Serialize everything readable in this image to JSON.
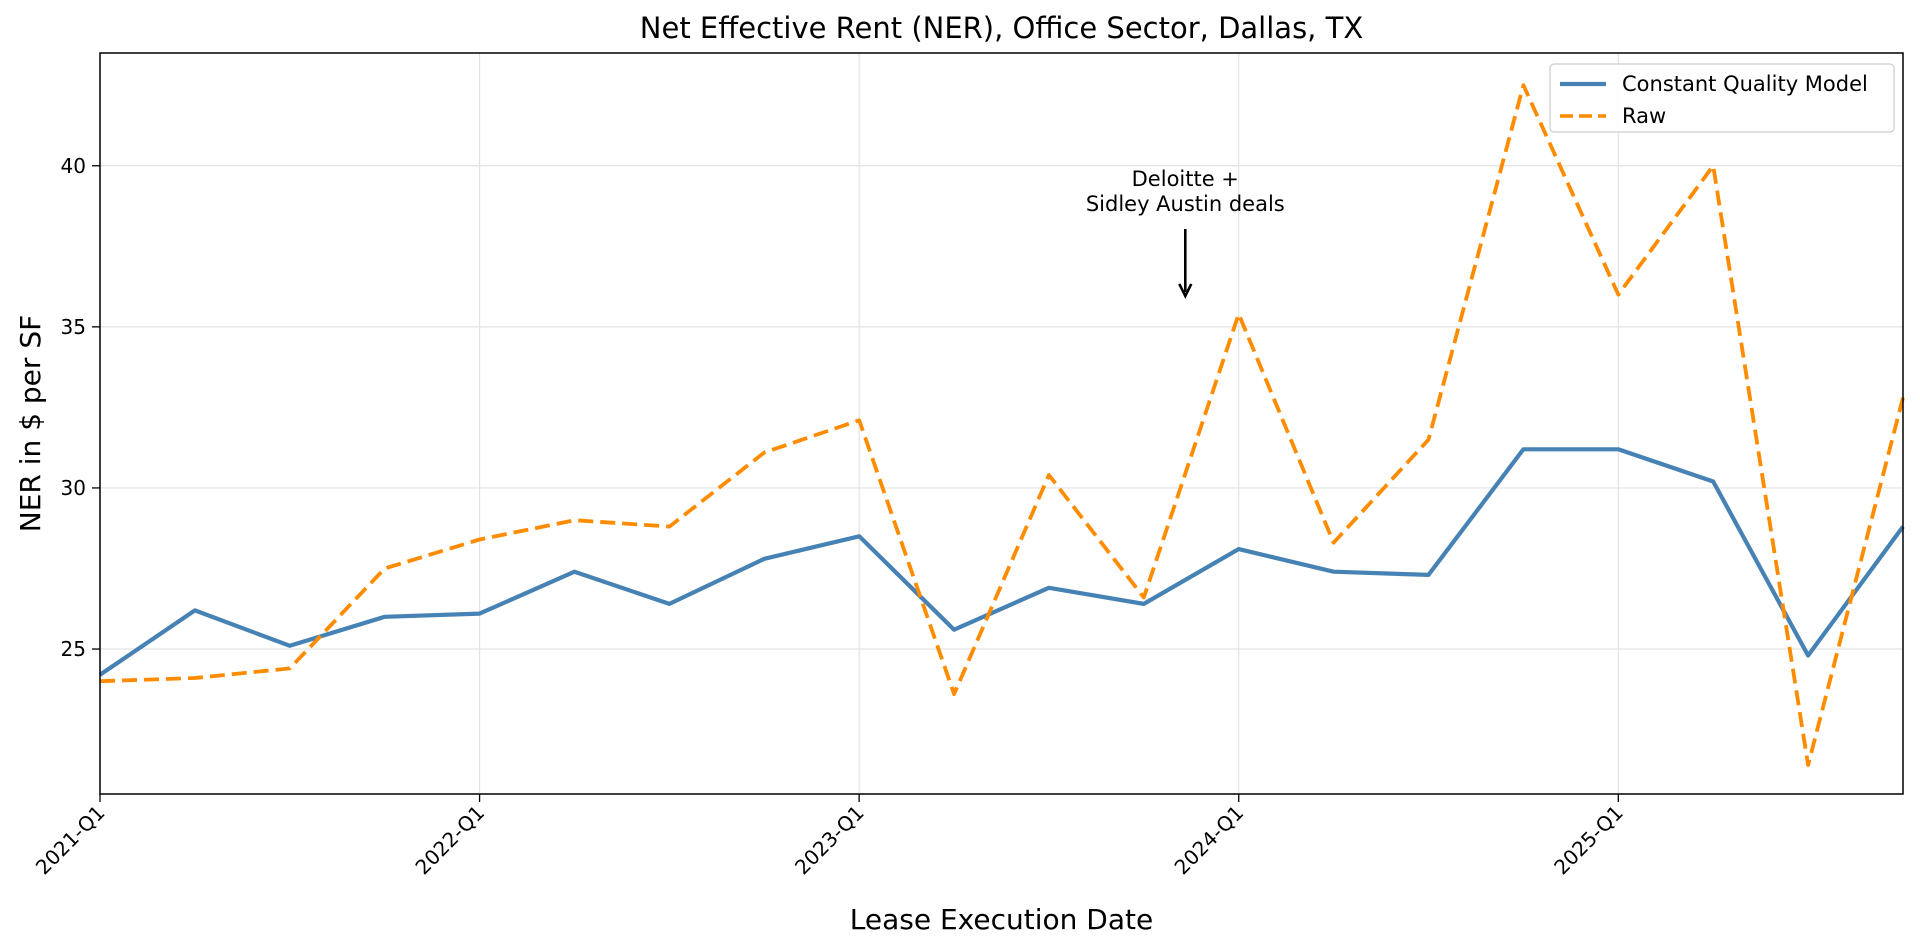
{
  "chart_data": {
    "type": "line",
    "title": "Net Effective Rent (NER), Office Sector, Dallas, TX",
    "xlabel": "Lease Execution Date",
    "ylabel": "NER in $ per SF",
    "x": [
      "2021-Q1",
      "2021-Q2",
      "2021-Q3",
      "2021-Q4",
      "2022-Q1",
      "2022-Q2",
      "2022-Q3",
      "2022-Q4",
      "2023-Q1",
      "2023-Q2",
      "2023-Q3",
      "2023-Q4",
      "2024-Q1",
      "2024-Q2",
      "2024-Q3",
      "2024-Q4",
      "2025-Q1",
      "2025-Q2",
      "2025-Q3",
      "2025-Q4"
    ],
    "x_ticks": [
      "2021-Q1",
      "2022-Q1",
      "2023-Q1",
      "2024-Q1",
      "2025-Q1"
    ],
    "y_ticks": [
      25,
      30,
      35,
      40
    ],
    "ylim": [
      20.5,
      43.5
    ],
    "grid": true,
    "legend_position": "top-right",
    "series": [
      {
        "name": "Constant Quality Model",
        "style": "solid",
        "color": "#4682b4",
        "values": [
          24.2,
          26.2,
          25.1,
          26.0,
          26.1,
          27.4,
          26.4,
          27.8,
          28.5,
          25.6,
          26.9,
          26.4,
          28.1,
          27.4,
          27.3,
          31.2,
          31.2,
          30.2,
          24.8,
          28.8
        ]
      },
      {
        "name": "Raw",
        "style": "dashed",
        "color": "#ff8c00",
        "values": [
          24.0,
          24.1,
          24.4,
          27.5,
          28.4,
          29.0,
          28.8,
          31.1,
          32.1,
          23.6,
          30.4,
          26.6,
          35.4,
          28.3,
          31.5,
          42.5,
          36.0,
          40.0,
          21.4,
          32.8
        ]
      }
    ],
    "annotations": [
      {
        "lines": [
          "Deloitte +",
          "Sidley Austin deals"
        ],
        "x": "2023-Q4",
        "y": 35.4
      }
    ]
  }
}
